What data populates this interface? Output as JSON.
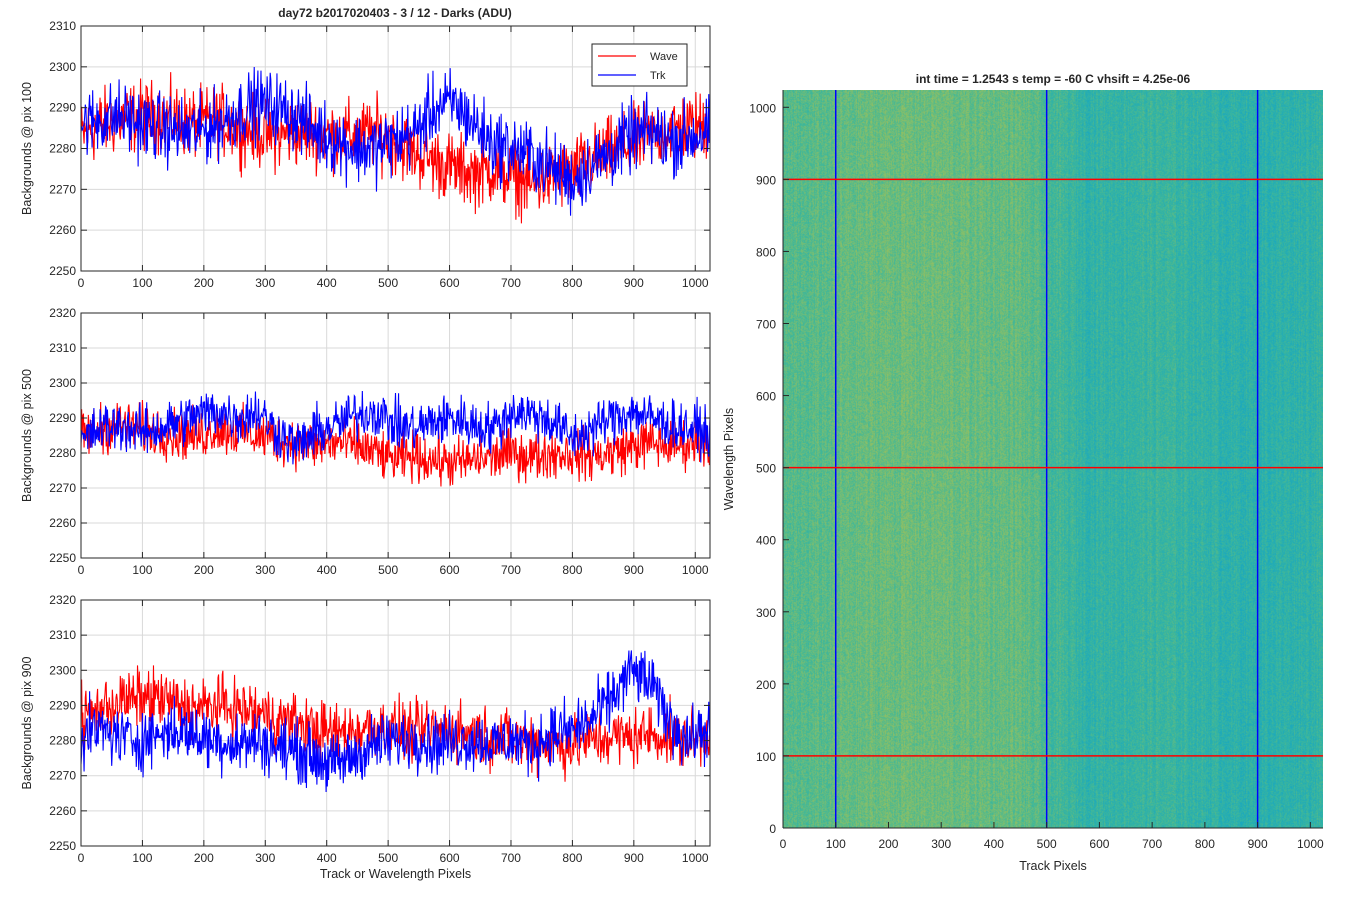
{
  "figure_title": "day72 b2017020403 - 3 / 12 - Darks (ADU)",
  "colors": {
    "wave": "#ff0000",
    "trk": "#0000ff",
    "grid": "#d9d9d9",
    "axis": "#262626"
  },
  "chart_data": [
    {
      "type": "line",
      "title": "day72 b2017020403 - 3 / 12 - Darks (ADU)",
      "xlabel": "",
      "ylabel": "Backgrounds @ pix 100",
      "xlim": [
        0,
        1024
      ],
      "ylim": [
        2250,
        2310
      ],
      "xticks": [
        0,
        100,
        200,
        300,
        400,
        500,
        600,
        700,
        800,
        900,
        1000
      ],
      "yticks": [
        2250,
        2260,
        2270,
        2280,
        2290,
        2300,
        2310
      ],
      "grid": true,
      "legend": "top-right",
      "series": [
        {
          "name": "Wave",
          "color": "#ff0000",
          "x_range": [
            0,
            1024
          ],
          "sample_step": 32,
          "values": [
            2283,
            2286,
            2287,
            2288,
            2288,
            2287,
            2286,
            2287,
            2285,
            2284,
            2283,
            2284,
            2284,
            2283,
            2283,
            2284,
            2282,
            2279,
            2277,
            2275,
            2274,
            2275,
            2273,
            2271,
            2273,
            2274,
            2277,
            2279,
            2281,
            2283,
            2285,
            2285,
            2286
          ],
          "noise": 6
        },
        {
          "name": "Trk",
          "color": "#0000ff",
          "x_range": [
            0,
            1024
          ],
          "sample_step": 32,
          "values": [
            2286,
            2287,
            2288,
            2286,
            2285,
            2284,
            2284,
            2286,
            2289,
            2291,
            2290,
            2288,
            2284,
            2282,
            2280,
            2280,
            2282,
            2284,
            2290,
            2291,
            2286,
            2281,
            2280,
            2278,
            2275,
            2272,
            2276,
            2279,
            2283,
            2284,
            2282,
            2283,
            2284
          ],
          "noise": 6
        }
      ]
    },
    {
      "type": "line",
      "title": "",
      "xlabel": "",
      "ylabel": "Backgrounds @ pix 500",
      "xlim": [
        0,
        1024
      ],
      "ylim": [
        2250,
        2320
      ],
      "xticks": [
        0,
        100,
        200,
        300,
        400,
        500,
        600,
        700,
        800,
        900,
        1000
      ],
      "yticks": [
        2250,
        2260,
        2270,
        2280,
        2290,
        2300,
        2310,
        2320
      ],
      "grid": true,
      "series": [
        {
          "name": "Wave",
          "color": "#ff0000",
          "x_range": [
            0,
            1024
          ],
          "sample_step": 32,
          "values": [
            2285,
            2287,
            2288,
            2287,
            2286,
            2285,
            2285,
            2287,
            2286,
            2285,
            2284,
            2283,
            2282,
            2283,
            2282,
            2280,
            2278,
            2279,
            2278,
            2277,
            2278,
            2279,
            2280,
            2279,
            2280,
            2280,
            2279,
            2280,
            2282,
            2283,
            2282,
            2283,
            2284
          ],
          "noise": 5
        },
        {
          "name": "Trk",
          "color": "#0000ff",
          "x_range": [
            0,
            1024
          ],
          "sample_step": 32,
          "values": [
            2283,
            2287,
            2288,
            2286,
            2287,
            2289,
            2291,
            2292,
            2290,
            2292,
            2286,
            2282,
            2286,
            2288,
            2291,
            2292,
            2288,
            2287,
            2289,
            2290,
            2288,
            2287,
            2292,
            2291,
            2289,
            2284,
            2287,
            2290,
            2292,
            2290,
            2288,
            2287,
            2286
          ],
          "noise": 5
        }
      ]
    },
    {
      "type": "line",
      "title": "",
      "xlabel": "Track or Wavelength Pixels",
      "ylabel": "Backgrounds @ pix 900",
      "xlim": [
        0,
        1024
      ],
      "ylim": [
        2250,
        2320
      ],
      "xticks": [
        0,
        100,
        200,
        300,
        400,
        500,
        600,
        700,
        800,
        900,
        1000
      ],
      "yticks": [
        2250,
        2260,
        2270,
        2280,
        2290,
        2300,
        2310,
        2320
      ],
      "grid": true,
      "series": [
        {
          "name": "Wave",
          "color": "#ff0000",
          "x_range": [
            0,
            1024
          ],
          "sample_step": 32,
          "values": [
            2286,
            2289,
            2291,
            2292,
            2292,
            2290,
            2289,
            2290,
            2289,
            2288,
            2286,
            2285,
            2283,
            2282,
            2283,
            2284,
            2283,
            2282,
            2283,
            2283,
            2282,
            2281,
            2280,
            2280,
            2279,
            2279,
            2280,
            2281,
            2281,
            2282,
            2281,
            2280,
            2282
          ],
          "noise": 6
        },
        {
          "name": "Trk",
          "color": "#0000ff",
          "x_range": [
            0,
            1024
          ],
          "sample_step": 32,
          "values": [
            2281,
            2283,
            2281,
            2280,
            2282,
            2283,
            2281,
            2280,
            2279,
            2280,
            2278,
            2277,
            2275,
            2273,
            2276,
            2279,
            2280,
            2281,
            2279,
            2280,
            2280,
            2279,
            2280,
            2279,
            2282,
            2283,
            2286,
            2292,
            2300,
            2296,
            2285,
            2280,
            2284
          ],
          "noise": 6
        }
      ]
    },
    {
      "type": "heatmap",
      "title": "int time = 1.2543 s    temp = -60 C    vhsift = 4.25e-06",
      "xlabel": "Track Pixels",
      "ylabel": "Wavelength Pixels",
      "xlim": [
        0,
        1024
      ],
      "ylim": [
        0,
        1024
      ],
      "xticks": [
        0,
        100,
        200,
        300,
        400,
        500,
        600,
        700,
        800,
        900,
        1000
      ],
      "yticks": [
        0,
        100,
        200,
        300,
        400,
        500,
        600,
        700,
        800,
        900,
        1000
      ],
      "colormap": "parula",
      "column_profile": [
        0.55,
        0.58,
        0.62,
        0.64,
        0.65,
        0.64,
        0.63,
        0.62,
        0.5,
        0.42,
        0.44,
        0.46,
        0.44,
        0.4,
        0.38,
        0.4,
        0.42
      ],
      "vertical_markers": {
        "color": "#0000ff",
        "x": [
          100,
          500,
          900
        ]
      },
      "horizontal_markers": {
        "color": "#ff0000",
        "y": [
          100,
          500,
          900
        ]
      }
    }
  ]
}
